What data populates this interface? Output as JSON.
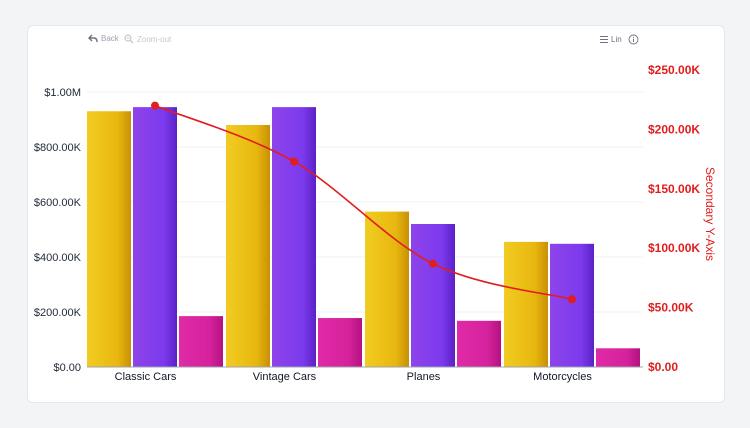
{
  "toolbar": {
    "back_label": "Back",
    "zoom_out_label": "Zoom-out",
    "scale_label": "Lin"
  },
  "chart_data": {
    "type": "bar",
    "categories": [
      "Classic Cars",
      "Vintage Cars",
      "Planes",
      "Motorcycles"
    ],
    "series": [
      {
        "values": [
          930000,
          880000,
          565000,
          455000
        ],
        "color": "#e8b80f"
      },
      {
        "values": [
          945000,
          945000,
          520000,
          448000
        ],
        "color": "#7c3aed"
      },
      {
        "values": [
          185000,
          178000,
          168000,
          68000
        ],
        "color": "#d6229c"
      },
      {
        "type": "line",
        "axis": "secondary",
        "values": [
          220000,
          173000,
          87000,
          57000
        ],
        "color": "#e11d1d"
      }
    ],
    "ylim": [
      0,
      1000000
    ],
    "y2lim": [
      0,
      250000
    ],
    "yticks": [
      "$0.00",
      "$200.00K",
      "$400.00K",
      "$600.00K",
      "$800.00K",
      "$1.00M"
    ],
    "y2ticks": [
      "$0.00",
      "$50.00K",
      "$100.00K",
      "$150.00K",
      "$200.00K",
      "$250.00K"
    ],
    "y2label": "Secondary Y-Axis",
    "grid": true
  }
}
